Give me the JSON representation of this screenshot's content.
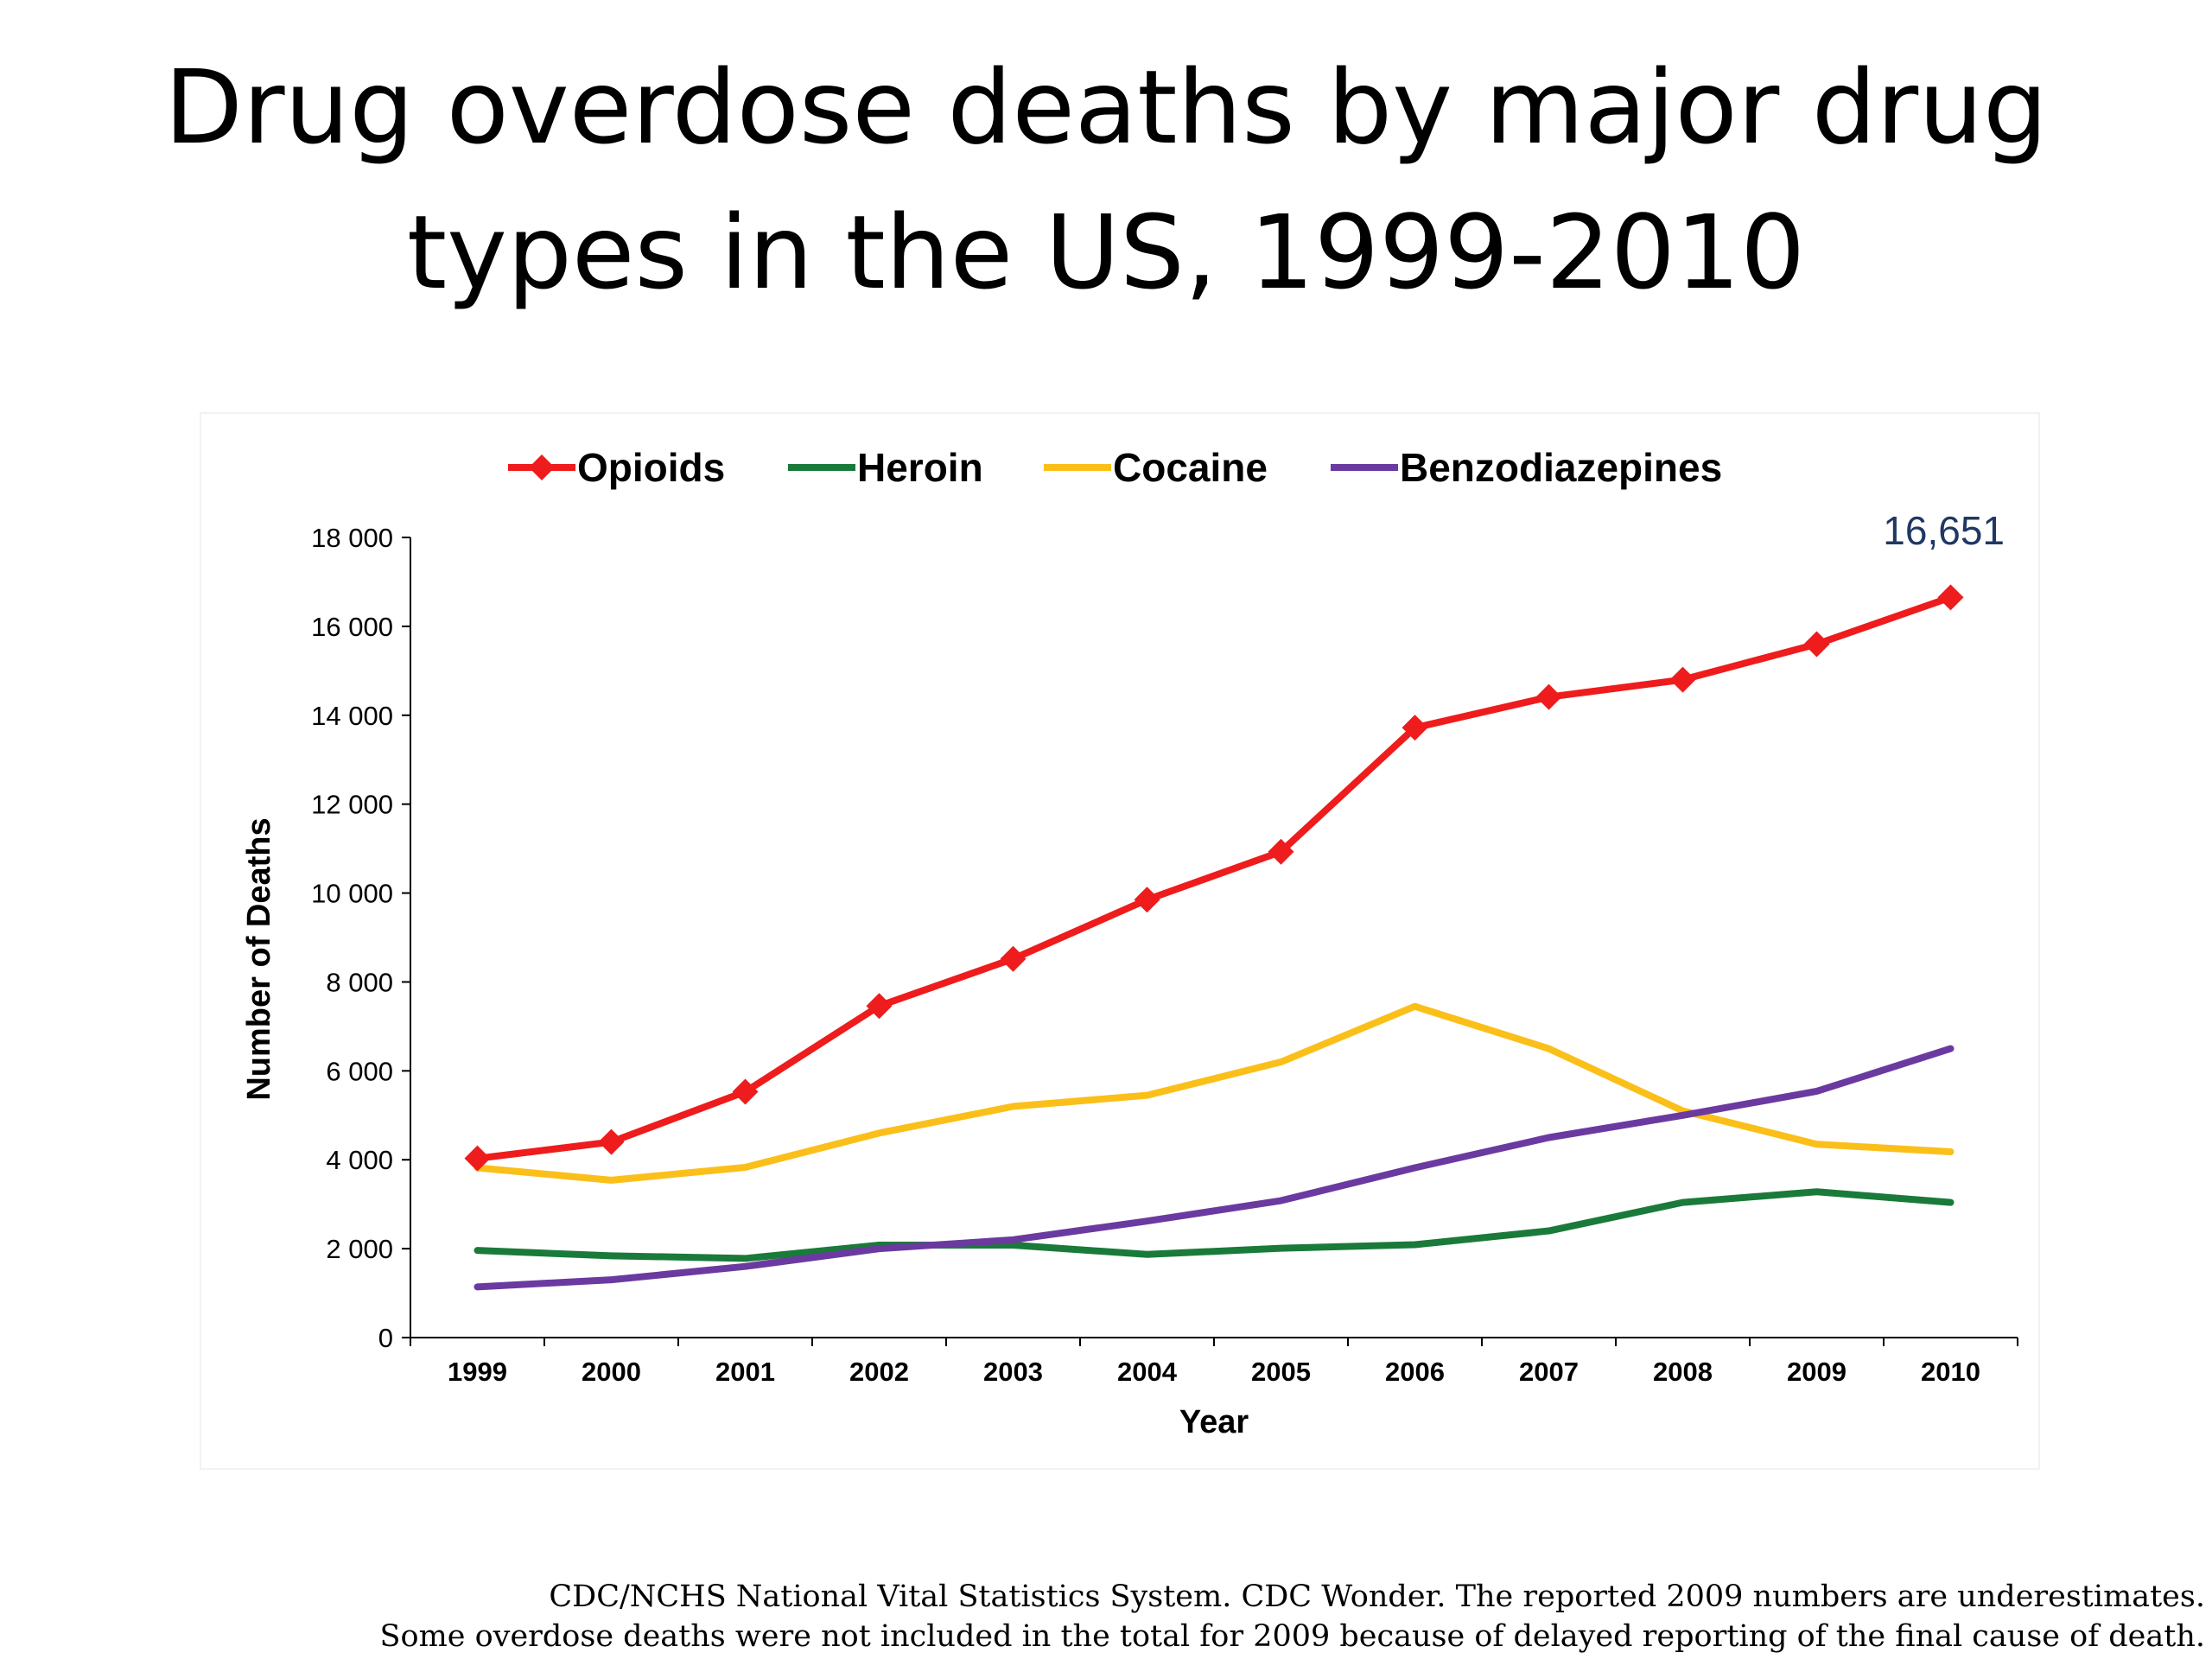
{
  "slide": {
    "title_line1": "Drug overdose deaths by major drug",
    "title_line2": "types in the US, 1999-2010",
    "footnote_line1": "CDC/NCHS National Vital Statistics System. CDC Wonder. The reported 2009 numbers are underestimates.",
    "footnote_line2": "Some overdose deaths were not included in the total for 2009 because of delayed reporting of the final cause of death."
  },
  "chart_data": {
    "type": "line",
    "title": "",
    "xlabel": "Year",
    "ylabel": "Number of Deaths",
    "categories": [
      "1999",
      "2000",
      "2001",
      "2002",
      "2003",
      "2004",
      "2005",
      "2006",
      "2007",
      "2008",
      "2009",
      "2010"
    ],
    "ylim": [
      0,
      18000
    ],
    "yticks": [
      0,
      2000,
      4000,
      6000,
      8000,
      10000,
      12000,
      14000,
      16000,
      18000
    ],
    "ytick_labels": [
      "0",
      "2 000",
      "4 000",
      "6 000",
      "8 000",
      "10 000",
      "12 000",
      "14 000",
      "16 000",
      "18 000"
    ],
    "grid": false,
    "legend_position": "top",
    "series": [
      {
        "name": "Opioids",
        "color": "#ee1c1c",
        "marker": "diamond",
        "values": [
          4030,
          4400,
          5530,
          7460,
          8520,
          9850,
          10930,
          13720,
          14410,
          14800,
          15600,
          16651
        ]
      },
      {
        "name": "Heroin",
        "color": "#1a7a3a",
        "marker": "none",
        "values": [
          1960,
          1840,
          1780,
          2080,
          2080,
          1870,
          2010,
          2090,
          2400,
          3040,
          3280,
          3040
        ]
      },
      {
        "name": "Cocaine",
        "color": "#fbbf1a",
        "marker": "none",
        "values": [
          3820,
          3540,
          3830,
          4600,
          5200,
          5450,
          6200,
          7450,
          6500,
          5100,
          4350,
          4180
        ]
      },
      {
        "name": "Benzodiazepines",
        "color": "#6b3aa0",
        "marker": "none",
        "values": [
          1140,
          1300,
          1600,
          2000,
          2200,
          2620,
          3080,
          3820,
          4500,
          5000,
          5540,
          6500
        ]
      }
    ],
    "annotations": [
      {
        "text": "16,651",
        "category": "2010",
        "series": "Opioids",
        "color": "#1f3864"
      }
    ]
  }
}
